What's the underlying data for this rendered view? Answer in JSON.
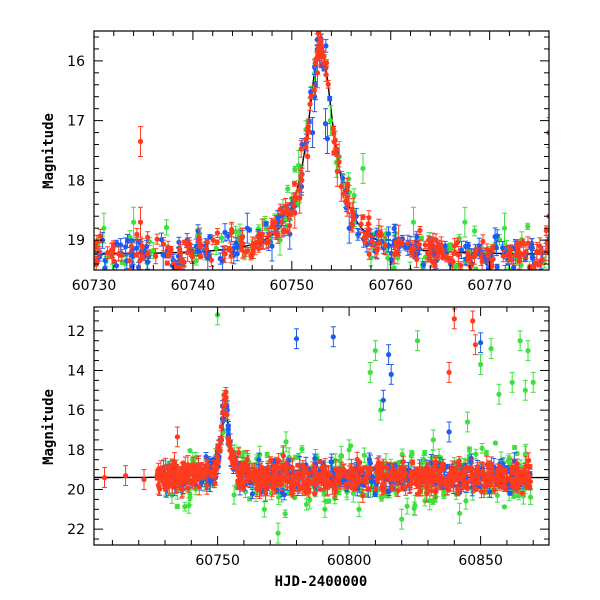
{
  "chart_data": [
    {
      "type": "scatter",
      "title": "",
      "xlabel": "",
      "ylabel": "Magnitude",
      "xlim": [
        60730,
        60776
      ],
      "ylim": [
        19.5,
        15.5
      ],
      "y_inverted": true,
      "x_ticks": [
        60730,
        60740,
        60750,
        60760,
        60770
      ],
      "y_ticks": [
        16,
        17,
        18,
        19
      ],
      "model_curve": {
        "baseline": 19.25,
        "peak_x": 60752.9,
        "peak_mag": 15.75,
        "width_days": 1.6
      },
      "series": [
        {
          "color": "#ff3b1f",
          "points": [
            [
              60734.7,
              17.35
            ],
            [
              60734.7,
              18.7
            ],
            [
              60745.0,
              19.05
            ],
            [
              60747.0,
              18.9
            ],
            [
              60749.0,
              18.7
            ],
            [
              60750.3,
              18.55
            ],
            [
              60750.8,
              18.3
            ],
            [
              60751.0,
              18.0
            ],
            [
              60751.6,
              17.6
            ],
            [
              60752.6,
              16.2
            ],
            [
              60752.8,
              15.85
            ],
            [
              60752.9,
              15.72
            ],
            [
              60753.0,
              15.8
            ],
            [
              60754.6,
              17.85
            ],
            [
              60755.0,
              18.1
            ],
            [
              60755.6,
              18.35
            ],
            [
              60756.2,
              18.55
            ],
            [
              60758.8,
              18.9
            ],
            [
              60760.8,
              19.0
            ],
            [
              60776.0,
              17.2
            ],
            [
              60776.0,
              18.6
            ]
          ]
        },
        {
          "color": "#1a5cf0",
          "points": [
            [
              60737.0,
              19.25
            ],
            [
              60741.5,
              19.3
            ],
            [
              60743.0,
              19.35
            ],
            [
              60745.5,
              18.8
            ],
            [
              60748.0,
              19.1
            ],
            [
              60749.8,
              18.9
            ],
            [
              60752.1,
              17.2
            ],
            [
              60752.3,
              16.6
            ],
            [
              60752.4,
              16.4
            ],
            [
              60753.4,
              17.05
            ],
            [
              60753.6,
              17.3
            ],
            [
              60755.8,
              18.8
            ],
            [
              60758.6,
              19.05
            ],
            [
              60760.5,
              19.0
            ]
          ]
        },
        {
          "color": "#3ee03e",
          "points": [
            [
              60731.0,
              18.8
            ],
            [
              60734.0,
              18.7
            ],
            [
              60748.8,
              19.0
            ],
            [
              60750.7,
              17.75
            ],
            [
              60753.9,
              17.0
            ],
            [
              60754.5,
              17.7
            ],
            [
              60754.8,
              17.6
            ],
            [
              60757.2,
              17.8
            ],
            [
              60759.7,
              19.3
            ],
            [
              60762.3,
              18.7
            ],
            [
              60767.5,
              18.7
            ],
            [
              60771.5,
              18.8
            ]
          ]
        }
      ]
    },
    {
      "type": "scatter",
      "title": "",
      "xlabel": "HJD-2400000",
      "ylabel": "Magnitude",
      "xlim": [
        60703,
        60876
      ],
      "ylim": [
        22.8,
        10.8
      ],
      "y_inverted": true,
      "x_ticks": [
        60750,
        60800,
        60850
      ],
      "y_ticks": [
        12,
        14,
        16,
        18,
        20,
        22
      ],
      "model_curve": {
        "baseline": 19.4,
        "peak_x": 60752.9,
        "peak_mag": 15.75,
        "width_days": 1.6
      },
      "series": [
        {
          "color": "#ff3b1f",
          "points": [
            [
              60707,
              19.4
            ],
            [
              60715,
              19.3
            ],
            [
              60722,
              19.5
            ],
            [
              60734.7,
              17.35
            ],
            [
              60750.5,
              18.0
            ],
            [
              60752.9,
              15.75
            ],
            [
              60755,
              18.0
            ],
            [
              60775,
              18.3
            ],
            [
              60800,
              19.3
            ],
            [
              60838,
              14.1
            ],
            [
              60840,
              11.4
            ],
            [
              60847,
              11.5
            ],
            [
              60848,
              12.7
            ],
            [
              60868,
              19.3
            ]
          ]
        },
        {
          "color": "#1a5cf0",
          "points": [
            [
              60752.2,
              16.5
            ],
            [
              60780,
              12.4
            ],
            [
              60794,
              12.3
            ],
            [
              60813,
              15.5
            ],
            [
              60815,
              13.2
            ],
            [
              60816,
              14.2
            ],
            [
              60838,
              17.1
            ],
            [
              60850,
              12.6
            ],
            [
              60860,
              19.5
            ]
          ]
        },
        {
          "color": "#3ee03e",
          "points": [
            [
              60750,
              11.2
            ],
            [
              60773,
              22.2
            ],
            [
              60776,
              17.6
            ],
            [
              60800,
              18.0
            ],
            [
              60808,
              14.1
            ],
            [
              60810,
              13.0
            ],
            [
              60812,
              16.0
            ],
            [
              60820,
              21.5
            ],
            [
              60825,
              20.8
            ],
            [
              60826,
              12.5
            ],
            [
              60832,
              17.5
            ],
            [
              60842,
              21.2
            ],
            [
              60845,
              16.6
            ],
            [
              60850,
              13.7
            ],
            [
              60854,
              12.9
            ],
            [
              60857,
              15.2
            ],
            [
              60862,
              14.6
            ],
            [
              60865,
              12.5
            ],
            [
              60867,
              15.0
            ],
            [
              60868,
              13.0
            ],
            [
              60870,
              14.6
            ]
          ]
        }
      ]
    }
  ]
}
